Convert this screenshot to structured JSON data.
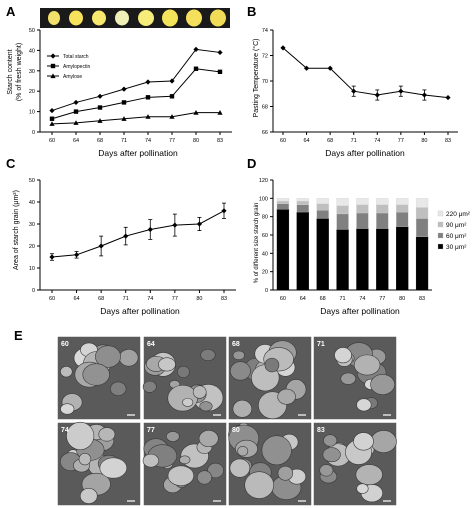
{
  "panels": {
    "a": "A",
    "b": "B",
    "c": "C",
    "d": "D",
    "e": "E"
  },
  "colors": {
    "axis": "#000000",
    "bar_30": "#000000",
    "bar_60": "#808080",
    "bar_90": "#bfbfbf",
    "bar_220": "#e8e8e8"
  },
  "chart_data": [
    {
      "type": "line",
      "panel": "A",
      "x": [
        60,
        64,
        68,
        71,
        74,
        77,
        80,
        83
      ],
      "series": [
        {
          "name": "Total starch",
          "marker": "diamond",
          "values": [
            10.5,
            14.5,
            17.5,
            21.0,
            24.5,
            25.0,
            40.5,
            39.0
          ]
        },
        {
          "name": "Amylopectin",
          "marker": "square",
          "values": [
            6.5,
            10.0,
            12.0,
            14.5,
            17.0,
            17.5,
            31.0,
            29.5
          ]
        },
        {
          "name": "Amylose",
          "marker": "triangle",
          "values": [
            4.0,
            4.5,
            5.5,
            6.5,
            7.5,
            7.5,
            9.5,
            9.5
          ]
        }
      ],
      "xlabel": "Days after pollination",
      "ylabel": "Starch content (% of fresh weight)",
      "ylabel_lines": [
        "Starch content",
        "(% of fresh weight)"
      ],
      "ylim": [
        0,
        50
      ],
      "yticks": [
        0,
        10,
        20,
        30,
        40,
        50
      ],
      "legend_position": "top-left"
    },
    {
      "type": "line",
      "panel": "B",
      "x": [
        60,
        64,
        68,
        71,
        74,
        77,
        80,
        83
      ],
      "series": [
        {
          "values": [
            72.6,
            71.0,
            71.0,
            69.2,
            68.9,
            69.2,
            68.9,
            68.7
          ]
        }
      ],
      "errors": [
        0,
        0,
        0,
        0.4,
        0.4,
        0.4,
        0.4,
        0
      ],
      "xlabel": "Days after pollination",
      "ylabel": "Pasting Temperature (°C)",
      "ylim": [
        66,
        74
      ],
      "yticks": [
        66,
        68,
        70,
        72,
        74
      ]
    },
    {
      "type": "line",
      "panel": "C",
      "x": [
        60,
        64,
        68,
        71,
        74,
        77,
        80,
        83
      ],
      "series": [
        {
          "values": [
            15.0,
            16.0,
            20.0,
            24.5,
            27.5,
            29.5,
            30.0,
            36.0
          ]
        }
      ],
      "errors": [
        1.5,
        1.5,
        4.5,
        4.0,
        4.5,
        5.0,
        3.0,
        3.5
      ],
      "xlabel": "Days after pollination",
      "ylabel": "Area of starch grain (μm²)",
      "ylim": [
        0,
        50
      ],
      "yticks": [
        0,
        10,
        20,
        30,
        40,
        50
      ]
    },
    {
      "type": "bar",
      "panel": "D",
      "stacked": true,
      "categories": [
        "60",
        "64",
        "68",
        "71",
        "74",
        "77",
        "80",
        "83"
      ],
      "series": [
        {
          "name": "30 μm²",
          "values": [
            88,
            85,
            78,
            66,
            67,
            67,
            69,
            58
          ]
        },
        {
          "name": "60 μm²",
          "values": [
            6,
            8,
            9,
            17,
            17,
            17,
            16,
            20
          ]
        },
        {
          "name": "90 μm²",
          "values": [
            3,
            4,
            7,
            9,
            9,
            9,
            8,
            12
          ]
        },
        {
          "name": "220 μm²",
          "values": [
            3,
            3,
            6,
            8,
            7,
            7,
            7,
            10
          ]
        }
      ],
      "xlabel": "Days after pollination",
      "ylabel": "% of different size starch grain",
      "ylim": [
        0,
        120
      ],
      "yticks": [
        0,
        20,
        40,
        60,
        80,
        100,
        120
      ],
      "legend_position": "right"
    }
  ],
  "micrographs": {
    "labels": [
      "60",
      "64",
      "68",
      "71",
      "74",
      "77",
      "80",
      "83"
    ]
  }
}
